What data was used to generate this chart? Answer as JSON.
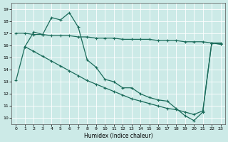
{
  "xlabel": "Humidex (Indice chaleur)",
  "xlim": [
    -0.5,
    23.5
  ],
  "ylim": [
    9.5,
    19.5
  ],
  "yticks": [
    10,
    11,
    12,
    13,
    14,
    15,
    16,
    17,
    18,
    19
  ],
  "xticks": [
    0,
    1,
    2,
    3,
    4,
    5,
    6,
    7,
    8,
    9,
    10,
    11,
    12,
    13,
    14,
    15,
    16,
    17,
    18,
    19,
    20,
    21,
    22,
    23
  ],
  "bg_color": "#cceae7",
  "line_color": "#1a6b5a",
  "grid_color": "#ffffff",
  "line_flat_x": [
    0,
    1,
    2,
    3,
    4,
    5,
    6,
    7,
    8,
    9,
    10,
    11,
    12,
    13,
    14,
    15,
    16,
    17,
    18,
    19,
    20,
    21,
    22,
    23
  ],
  "line_flat_y": [
    17.0,
    17.0,
    16.9,
    16.9,
    16.8,
    16.8,
    16.8,
    16.7,
    16.7,
    16.6,
    16.6,
    16.6,
    16.5,
    16.5,
    16.5,
    16.5,
    16.4,
    16.4,
    16.4,
    16.3,
    16.3,
    16.3,
    16.2,
    16.2
  ],
  "line_jagged_x": [
    0,
    1,
    2,
    3,
    4,
    5,
    6,
    7,
    8,
    9,
    10,
    11,
    12,
    13,
    14,
    15,
    16,
    17,
    18,
    19,
    20,
    21,
    22,
    23
  ],
  "line_jagged_y": [
    13.1,
    15.9,
    17.1,
    16.9,
    18.3,
    18.1,
    18.7,
    17.5,
    14.8,
    14.2,
    13.2,
    13.0,
    12.5,
    12.5,
    12.0,
    11.7,
    11.5,
    11.4,
    10.8,
    10.2,
    9.8,
    10.5,
    16.2,
    16.1
  ],
  "line_diag_x": [
    1,
    2,
    3,
    4,
    5,
    6,
    7,
    8,
    9,
    10,
    11,
    12,
    13,
    14,
    15,
    16,
    17,
    18,
    19,
    20,
    21,
    22,
    23
  ],
  "line_diag_y": [
    15.9,
    15.5,
    15.1,
    14.7,
    14.3,
    13.9,
    13.5,
    13.1,
    12.8,
    12.5,
    12.2,
    11.9,
    11.6,
    11.4,
    11.2,
    11.0,
    10.8,
    10.7,
    10.5,
    10.3,
    10.6,
    16.2,
    16.1
  ]
}
